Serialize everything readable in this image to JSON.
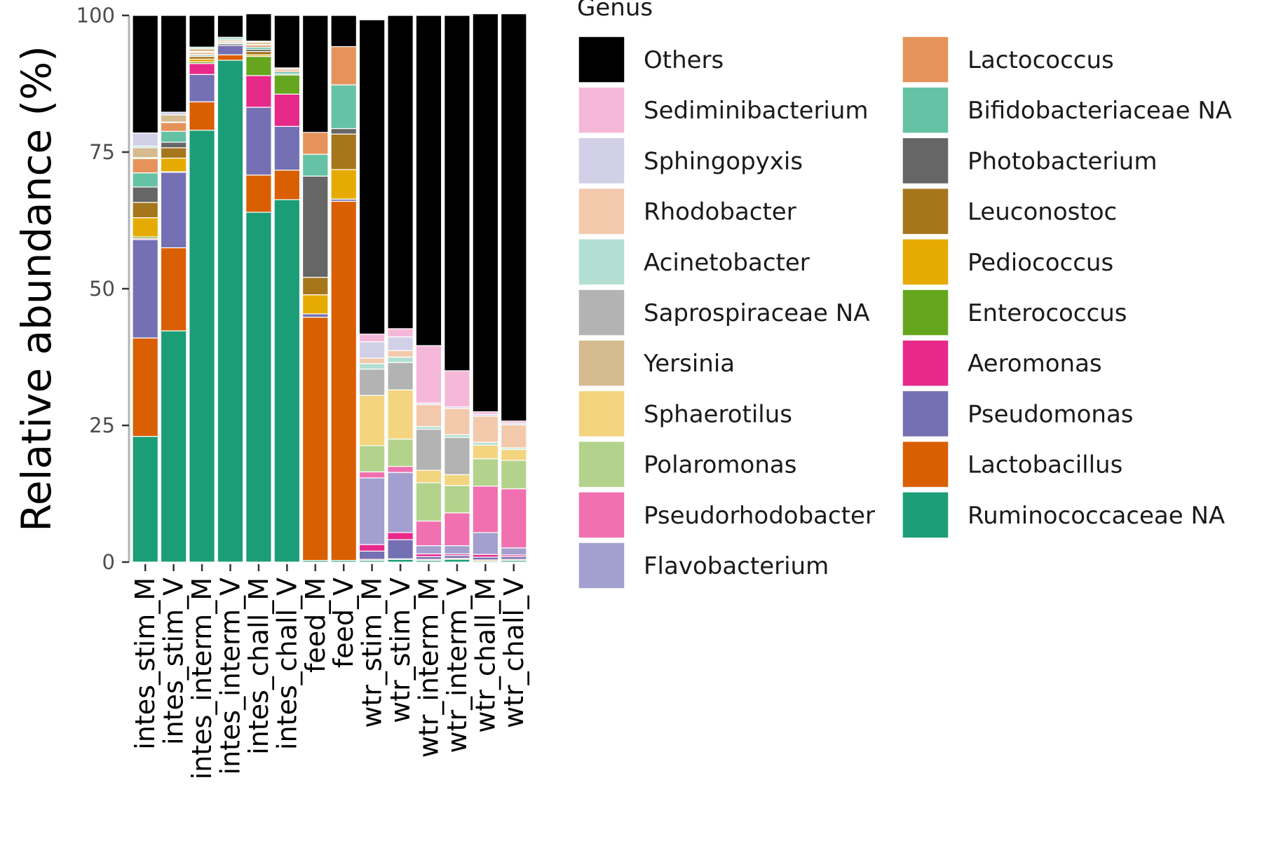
{
  "chart_data": {
    "type": "bar",
    "stacked": true,
    "title": "",
    "xlabel": "",
    "ylabel": "Relative abundance (%)",
    "ylim": [
      0,
      100
    ],
    "yticks": [
      "0",
      "25",
      "50",
      "75",
      "100"
    ],
    "legend_title": "Genus",
    "legend_position": "right",
    "categories": [
      "intes_stim_M",
      "intes_stim_V",
      "intes_interm_M",
      "intes_interm_V",
      "intes_chall_M",
      "intes_chall_V",
      "feed_M",
      "feed_V",
      "wtr_stim_M",
      "wtr_stim_V",
      "wtr_interm_M",
      "wtr_interm_V",
      "wtr_chall_M",
      "wtr_chall_V"
    ],
    "series": [
      {
        "name": "Ruminococcaceae NA",
        "color": "#1b9e77",
        "values": [
          23,
          42.3,
          79,
          91.8,
          64,
          66.3,
          0.3,
          0.3,
          0.3,
          0.5,
          0.3,
          0.5,
          0.2,
          0.3
        ]
      },
      {
        "name": "Lactobacillus",
        "color": "#d95f02",
        "values": [
          18,
          15.2,
          5.2,
          1,
          6.8,
          5.4,
          44.5,
          65.7,
          0.2,
          0.1,
          0.2,
          0.2,
          0.2,
          0.2
        ]
      },
      {
        "name": "Pseudomonas",
        "color": "#7570b3",
        "values": [
          18,
          13.8,
          5,
          1.7,
          12.4,
          8,
          0.6,
          0.4,
          1.5,
          3.5,
          0.5,
          0.5,
          0.5,
          0.5
        ]
      },
      {
        "name": "Aeromonas",
        "color": "#e7298a",
        "values": [
          0.2,
          0,
          2,
          0,
          5.8,
          5.9,
          0,
          0,
          1.2,
          1.3,
          0.5,
          0.3,
          0.5,
          0.3
        ]
      },
      {
        "name": "Enterococcus",
        "color": "#66a61e",
        "values": [
          0.3,
          0.1,
          0.3,
          0,
          3.5,
          3.5,
          0,
          0,
          0,
          0,
          0,
          0,
          0,
          0
        ]
      },
      {
        "name": "Pediococcus",
        "color": "#e6ab02",
        "values": [
          3.5,
          2.5,
          0.5,
          0,
          0.3,
          0,
          3.5,
          5.4,
          0,
          0,
          0,
          0,
          0,
          0
        ]
      },
      {
        "name": "Leuconostoc",
        "color": "#a6761d",
        "values": [
          2.8,
          1.9,
          0.5,
          0,
          0.6,
          0,
          3.2,
          6.5,
          0,
          0,
          0,
          0,
          0,
          0
        ]
      },
      {
        "name": "Photobacterium",
        "color": "#666666",
        "values": [
          2.8,
          1,
          0.2,
          0.3,
          0.4,
          0.2,
          18.5,
          1,
          0,
          0,
          0,
          0,
          0,
          0
        ]
      },
      {
        "name": "Bifidobacteriaceae NA",
        "color": "#66c2a5",
        "values": [
          2.6,
          2,
          0.2,
          0.2,
          0.4,
          0.4,
          4,
          8,
          0,
          0,
          0,
          0,
          0,
          0
        ]
      },
      {
        "name": "Lactococcus",
        "color": "#e5935b",
        "values": [
          2.6,
          1.6,
          0.3,
          0.2,
          0.4,
          0.3,
          4,
          7,
          0,
          0,
          0,
          0,
          0,
          0
        ]
      },
      {
        "name": "Flavobacterium",
        "color": "#a3a0cf",
        "values": [
          0,
          0,
          0,
          0,
          0,
          0,
          0,
          0,
          12.2,
          11,
          1.5,
          1.5,
          4,
          1.3
        ]
      },
      {
        "name": "Pseudorhodobacter",
        "color": "#f070b0",
        "values": [
          0,
          0,
          0,
          0,
          0,
          0,
          0,
          0,
          1.1,
          1.1,
          4.5,
          6,
          8.5,
          10.8
        ]
      },
      {
        "name": "Polaromonas",
        "color": "#b3d38d",
        "values": [
          0,
          0,
          0,
          0,
          0,
          0,
          0,
          0,
          4.8,
          5,
          7,
          5,
          5,
          5.2
        ]
      },
      {
        "name": "Sphaerotilus",
        "color": "#f3d580",
        "values": [
          0.2,
          0.1,
          0.2,
          0,
          0.1,
          0,
          0,
          0,
          9.2,
          9,
          2.3,
          2,
          2.5,
          2
        ]
      },
      {
        "name": "Yersinia",
        "color": "#d4ba8e",
        "values": [
          1.8,
          1.3,
          0.5,
          0.3,
          0.4,
          0.3,
          0,
          0,
          0,
          0,
          0,
          0,
          0,
          0
        ]
      },
      {
        "name": "Saprospiraceae NA",
        "color": "#b3b3b3",
        "values": [
          0,
          0,
          0,
          0,
          0,
          0,
          0,
          0,
          4.8,
          5,
          7.5,
          6.8,
          0,
          0
        ]
      },
      {
        "name": "Acinetobacter",
        "color": "#b2dfd2",
        "values": [
          0.3,
          0,
          0.3,
          0.5,
          0.2,
          0.1,
          0,
          0,
          1,
          1,
          0.5,
          0.5,
          0.5,
          0.3
        ]
      },
      {
        "name": "Rhodobacter",
        "color": "#f3c9ac",
        "values": [
          0,
          0,
          0,
          0,
          0,
          0,
          0,
          0,
          1,
          1.2,
          4,
          4.8,
          4.8,
          4.2
        ]
      },
      {
        "name": "Sphingopyxis",
        "color": "#d2d0e7",
        "values": [
          2.4,
          0.5,
          0,
          0,
          0,
          0,
          0,
          0,
          3,
          2.5,
          0.3,
          0.3,
          0.3,
          0.3
        ]
      },
      {
        "name": "Sediminibacterium",
        "color": "#f6b8d9",
        "values": [
          0,
          0,
          0,
          0,
          0,
          0,
          0,
          0,
          1.4,
          1.5,
          10.5,
          6.6,
          0.5,
          0.4
        ]
      },
      {
        "name": "Others",
        "color": "#000000",
        "values": [
          21.5,
          17.7,
          5.8,
          4,
          5,
          9.6,
          21.4,
          5.7,
          57.5,
          57.3,
          60.4,
          65,
          72.8,
          74.5
        ]
      }
    ],
    "legend_order": [
      "Others",
      "Sediminibacterium",
      "Sphingopyxis",
      "Rhodobacter",
      "Acinetobacter",
      "Saprospiraceae NA",
      "Yersinia",
      "Sphaerotilus",
      "Polaromonas",
      "Pseudorhodobacter",
      "Flavobacterium",
      "Lactococcus",
      "Bifidobacteriaceae NA",
      "Photobacterium",
      "Leuconostoc",
      "Pediococcus",
      "Enterococcus",
      "Aeromonas",
      "Pseudomonas",
      "Lactobacillus",
      "Ruminococcaceae NA"
    ]
  }
}
